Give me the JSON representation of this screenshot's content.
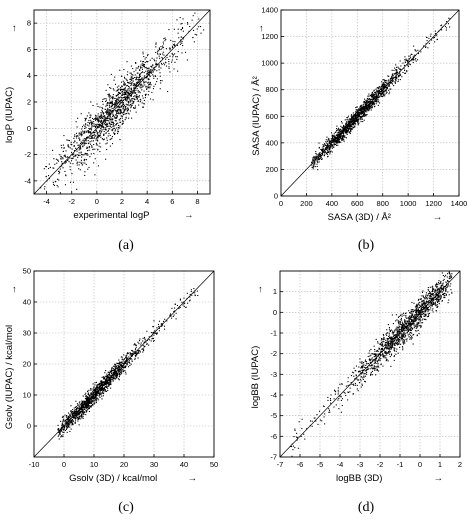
{
  "chart_data": [
    {
      "type": "scatter",
      "panel": "(a)",
      "xlabel": "experimental logP",
      "ylabel": "logP (IUPAC)",
      "xlim": [
        -5,
        9
      ],
      "ylim": [
        -5,
        9
      ],
      "xticks": [
        -4,
        -2,
        0,
        2,
        4,
        6,
        8
      ],
      "yticks": [
        -4,
        -2,
        0,
        2,
        4,
        6,
        8
      ],
      "reference_line": "y = x",
      "grid": true,
      "point_cloud": {
        "x_min": -4.5,
        "x_max": 8.5,
        "center": [
          1.5,
          1.3
        ],
        "spread": 0.9,
        "n_points": 1500
      }
    },
    {
      "type": "scatter",
      "panel": "(b)",
      "xlabel": "SASA (3D) / Å²",
      "ylabel": "SASA (IUPAC) / Å²",
      "xlim": [
        0,
        1400
      ],
      "ylim": [
        0,
        1400
      ],
      "xticks": [
        0,
        200,
        400,
        600,
        800,
        1000,
        1200,
        1400
      ],
      "yticks": [
        0,
        200,
        400,
        600,
        800,
        1000,
        1200,
        1400
      ],
      "reference_line": "y = x",
      "grid": true,
      "point_cloud": {
        "x_min": 240,
        "x_max": 1330,
        "center": [
          580,
          580
        ],
        "spread": 30,
        "n_points": 1500
      }
    },
    {
      "type": "scatter",
      "panel": "(c)",
      "xlabel": "Gsolv (3D) / kcal/mol",
      "ylabel": "Gsolv (IUPAC) / kcal/mol",
      "xlim": [
        -10,
        50
      ],
      "ylim": [
        -10,
        50
      ],
      "xticks": [
        -10,
        0,
        10,
        20,
        30,
        40,
        50
      ],
      "yticks": [
        0,
        10,
        20,
        30,
        40,
        50
      ],
      "reference_line": "y = x",
      "grid": true,
      "point_cloud": {
        "x_min": -2,
        "x_max": 45,
        "center": [
          10,
          10
        ],
        "spread": 1.4,
        "n_points": 1500
      }
    },
    {
      "type": "scatter",
      "panel": "(d)",
      "xlabel": "logBB (3D)",
      "ylabel": "logBB (IUPAC)",
      "xlim": [
        -7,
        2
      ],
      "ylim": [
        -7,
        2
      ],
      "xticks": [
        -7,
        -6,
        -5,
        -4,
        -3,
        -2,
        -1,
        0,
        1,
        2
      ],
      "yticks": [
        -7,
        -6,
        -5,
        -4,
        -3,
        -2,
        -1,
        0,
        1
      ],
      "reference_line": "y = x",
      "grid": true,
      "point_cloud": {
        "x_min": -6.5,
        "x_max": 1.6,
        "center": [
          -0.6,
          -0.5
        ],
        "spread": 0.35,
        "n_points": 1500
      }
    }
  ],
  "captions": [
    "(a)",
    "(b)",
    "(c)",
    "(d)"
  ],
  "arrows": {
    "x": "→",
    "y": "→"
  }
}
